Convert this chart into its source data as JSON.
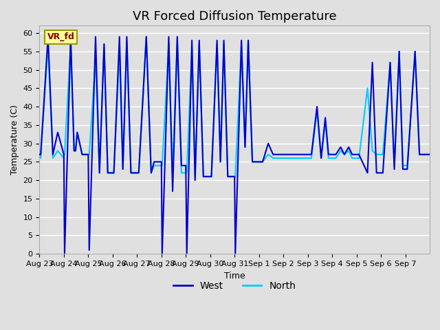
{
  "title": "VR Forced Diffusion Temperature",
  "xlabel": "Time",
  "ylabel": "Temperature (C)",
  "ylim": [
    0,
    62
  ],
  "yticks": [
    0,
    5,
    10,
    15,
    20,
    25,
    30,
    35,
    40,
    45,
    50,
    55,
    60
  ],
  "xtick_labels": [
    "Aug 23",
    "Aug 24",
    "Aug 25",
    "Aug 26",
    "Aug 27",
    "Aug 28",
    "Aug 29",
    "Aug 30",
    "Aug 31",
    "Sep 1",
    "Sep 2",
    "Sep 3",
    "Sep 4",
    "Sep 5",
    "Sep 6",
    "Sep 7"
  ],
  "west_color": "#0000CC",
  "north_color": "#00CCFF",
  "bg_color": "#E0E0E0",
  "grid_color": "#FFFFFF",
  "annotation_text": "VR_fd",
  "annotation_bg": "#FFFF99",
  "annotation_border": "#999900",
  "legend_west": "West",
  "legend_north": "North",
  "title_fontsize": 13,
  "axis_label_fontsize": 9,
  "tick_fontsize": 8,
  "west_lw": 1.5,
  "north_lw": 1.5
}
